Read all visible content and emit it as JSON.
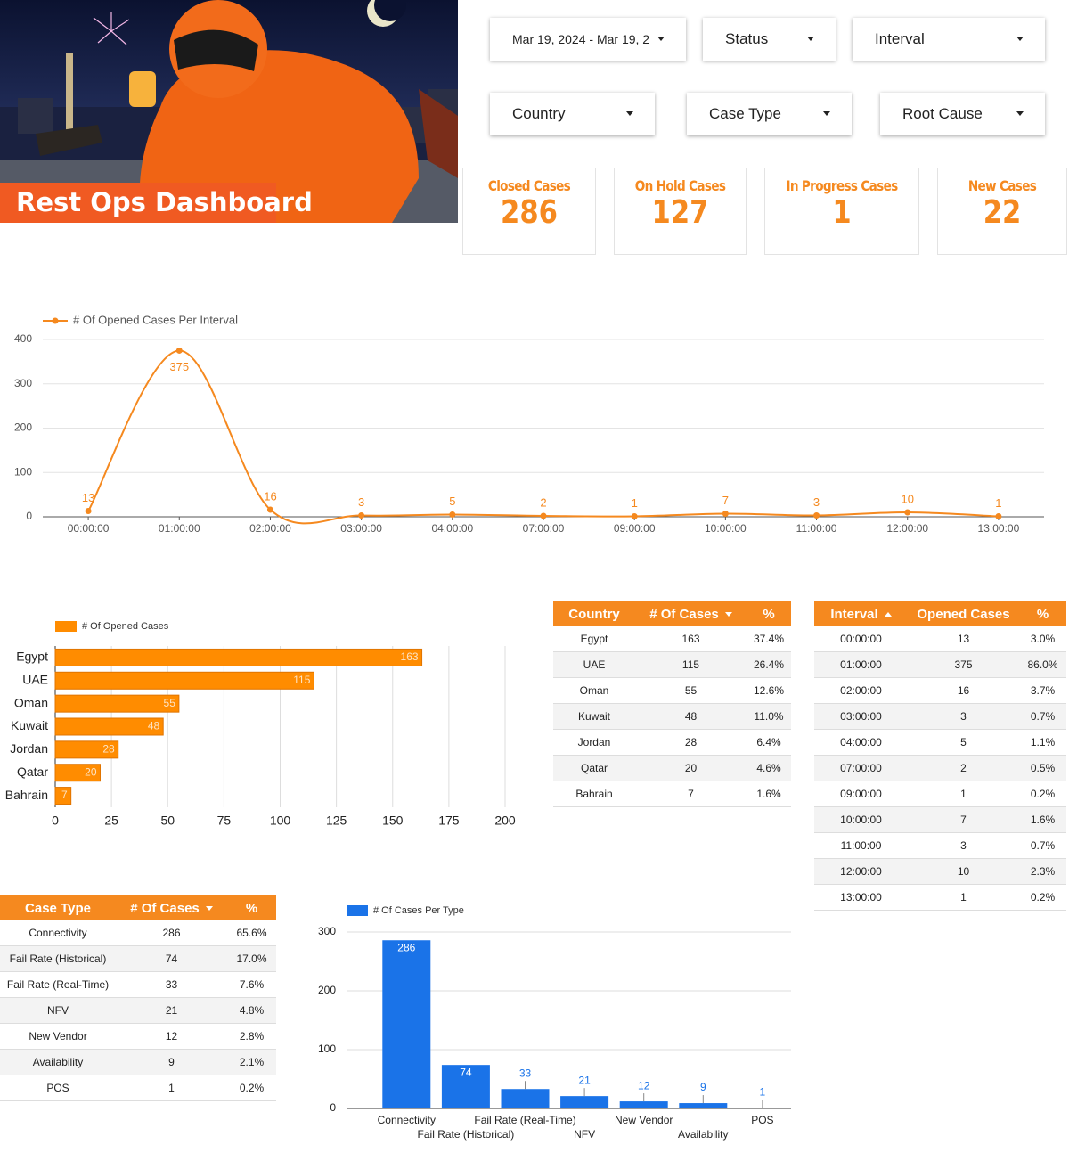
{
  "header": {
    "title": "Rest Ops Dashboard"
  },
  "filters": [
    "Mar 19, 2024 - Mar 19, 2",
    "Status",
    "Interval",
    "Country",
    "Case Type",
    "Root Cause"
  ],
  "kpis": [
    {
      "label": "Closed Cases",
      "value": 286
    },
    {
      "label": "On Hold Cases",
      "value": 127
    },
    {
      "label": "In Progress Cases",
      "value": 1
    },
    {
      "label": "New Cases",
      "value": 22
    }
  ],
  "chart_data": [
    {
      "type": "line",
      "categories": [
        "00:00:00",
        "01:00:00",
        "02:00:00",
        "03:00:00",
        "04:00:00",
        "07:00:00",
        "09:00:00",
        "10:00:00",
        "11:00:00",
        "12:00:00",
        "13:00:00"
      ],
      "series": [
        {
          "name": "# Of Opened Cases Per Interval",
          "color": "#f5891f",
          "values": [
            13,
            375,
            16,
            3,
            5,
            2,
            1,
            7,
            3,
            10,
            1
          ]
        }
      ],
      "ylim": [
        0,
        400
      ],
      "yticks": [
        0,
        100,
        200,
        300,
        400
      ],
      "grid": true,
      "legend": "top-left"
    },
    {
      "type": "bar",
      "orientation": "horizontal",
      "categories": [
        "Egypt",
        "UAE",
        "Oman",
        "Kuwait",
        "Jordan",
        "Qatar",
        "Bahrain"
      ],
      "series": [
        {
          "name": "# Of Opened Cases",
          "color": "#ff8c00",
          "values": [
            163,
            115,
            55,
            48,
            28,
            20,
            7
          ]
        }
      ],
      "xlim": [
        0,
        200
      ],
      "xticks": [
        0,
        25,
        50,
        75,
        100,
        125,
        150,
        175,
        200
      ],
      "grid": true,
      "legend": "top-left"
    },
    {
      "type": "bar",
      "orientation": "vertical",
      "categories": [
        "Connectivity",
        "Fail Rate (Historical)",
        "Fail Rate (Real-Time)",
        "NFV",
        "New Vendor",
        "Availability",
        "POS"
      ],
      "series": [
        {
          "name": "# Of Cases Per Type",
          "color": "#1a73e8",
          "values": [
            286,
            74,
            33,
            21,
            12,
            9,
            1
          ]
        }
      ],
      "ylim": [
        0,
        300
      ],
      "yticks": [
        0,
        100,
        200,
        300
      ],
      "grid": true,
      "legend": "top-left"
    }
  ],
  "tables": {
    "country": {
      "columns": [
        "Country",
        "# Of Cases",
        "%"
      ],
      "rows": [
        [
          "Egypt",
          163,
          "37.4%"
        ],
        [
          "UAE",
          115,
          "26.4%"
        ],
        [
          "Oman",
          55,
          "12.6%"
        ],
        [
          "Kuwait",
          48,
          "11.0%"
        ],
        [
          "Jordan",
          28,
          "6.4%"
        ],
        [
          "Qatar",
          20,
          "4.6%"
        ],
        [
          "Bahrain",
          7,
          "1.6%"
        ]
      ]
    },
    "interval": {
      "columns": [
        "Interval",
        "Opened Cases",
        "%"
      ],
      "rows": [
        [
          "00:00:00",
          13,
          "3.0%"
        ],
        [
          "01:00:00",
          375,
          "86.0%"
        ],
        [
          "02:00:00",
          16,
          "3.7%"
        ],
        [
          "03:00:00",
          3,
          "0.7%"
        ],
        [
          "04:00:00",
          5,
          "1.1%"
        ],
        [
          "07:00:00",
          2,
          "0.5%"
        ],
        [
          "09:00:00",
          1,
          "0.2%"
        ],
        [
          "10:00:00",
          7,
          "1.6%"
        ],
        [
          "11:00:00",
          3,
          "0.7%"
        ],
        [
          "12:00:00",
          10,
          "2.3%"
        ],
        [
          "13:00:00",
          1,
          "0.2%"
        ]
      ]
    },
    "case_type": {
      "columns": [
        "Case Type",
        "# Of Cases",
        "%"
      ],
      "rows": [
        [
          "Connectivity",
          286,
          "65.6%"
        ],
        [
          "Fail Rate (Historical)",
          74,
          "17.0%"
        ],
        [
          "Fail Rate (Real-Time)",
          33,
          "7.6%"
        ],
        [
          "NFV",
          21,
          "4.8%"
        ],
        [
          "New Vendor",
          12,
          "2.8%"
        ],
        [
          "Availability",
          9,
          "2.1%"
        ],
        [
          "POS",
          1,
          "0.2%"
        ]
      ]
    }
  }
}
